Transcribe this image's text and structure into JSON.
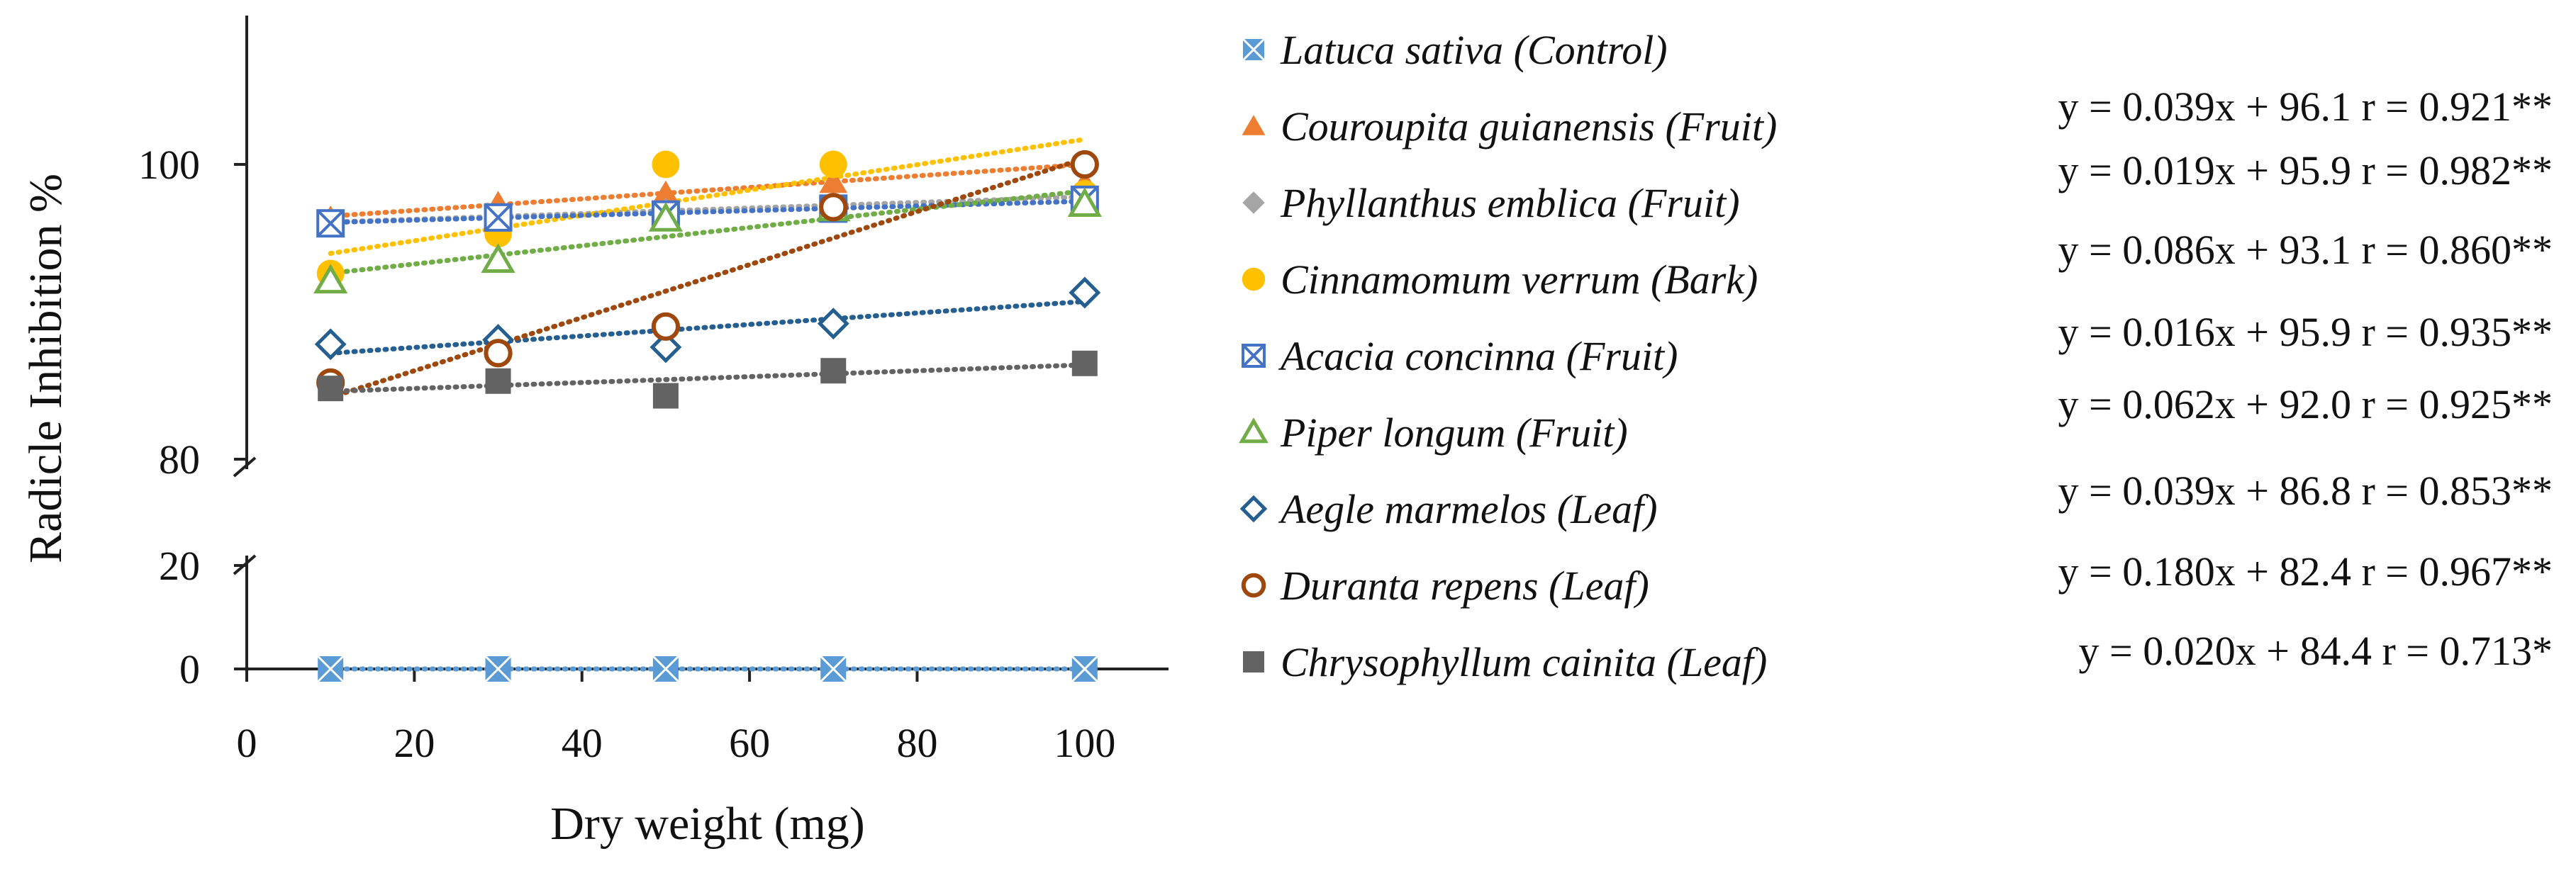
{
  "chart_data": {
    "type": "scatter",
    "title": "",
    "xlabel": "Dry weight (mg)",
    "ylabel": "Radicle Inhibition %",
    "xlim": [
      0,
      110
    ],
    "x_ticks": [
      0,
      20,
      40,
      60,
      80,
      100
    ],
    "x_tick_labels": [
      "0",
      "20",
      "40",
      "60",
      "80",
      "100"
    ],
    "y_axis_break": true,
    "y_lower_segment": {
      "range": [
        0,
        20
      ],
      "tick_labels": [
        "0",
        "20"
      ]
    },
    "y_upper_segment": {
      "range": [
        80,
        110
      ],
      "tick_labels": [
        "80",
        "100"
      ]
    },
    "grid": false,
    "legend_position": "right",
    "x": [
      10,
      30,
      50,
      70,
      100
    ],
    "series": [
      {
        "name": "Latuca sativa (Control)",
        "marker": "square-x",
        "color": "#5b9bd5",
        "values": [
          0,
          0,
          0,
          0,
          0
        ],
        "equation": "",
        "trend": {
          "slope": 0,
          "intercept": 0
        }
      },
      {
        "name": "Couroupita guianensis (Fruit)",
        "marker": "triangle",
        "color": "#ed7d31",
        "values": [
          96.3,
          97.3,
          98.0,
          98.8,
          98.7
        ],
        "equation": "y = 0.039x + 96.1 r = 0.921**",
        "trend": {
          "slope": 0.039,
          "intercept": 96.1
        }
      },
      {
        "name": "Phyllanthus emblica (Fruit)",
        "marker": "diamond",
        "color": "#a5a5a5",
        "values": [
          96.0,
          96.4,
          96.8,
          97.1,
          97.7
        ],
        "equation": "y = 0.019x + 95.9 r = 0.982**",
        "trend": {
          "slope": 0.019,
          "intercept": 95.9
        }
      },
      {
        "name": "Cinnamomum verrum (Bark)",
        "marker": "circle",
        "color": "#ffc000",
        "values": [
          92.6,
          95.3,
          100.0,
          100.0,
          98.0
        ],
        "equation": "y = 0.086x + 93.1 r = 0.860**",
        "trend": {
          "slope": 0.086,
          "intercept": 93.1
        }
      },
      {
        "name": "Acacia concinna (Fruit)",
        "marker": "square-x-open",
        "color": "#4472c4",
        "values": [
          96.0,
          96.4,
          96.6,
          97.0,
          97.6
        ],
        "equation": "y = 0.016x + 95.9 r = 0.935**",
        "trend": {
          "slope": 0.016,
          "intercept": 95.9
        }
      },
      {
        "name": "Piper longum (Fruit)",
        "marker": "triangle-open",
        "color": "#70ad47",
        "values": [
          92.1,
          93.5,
          96.3,
          97.0,
          97.3
        ],
        "equation": "y = 0.062x + 92.0 r = 0.925**",
        "trend": {
          "slope": 0.062,
          "intercept": 92.0
        }
      },
      {
        "name": "Aegle marmelos (Leaf)",
        "marker": "diamond-open",
        "color": "#255e91",
        "values": [
          87.8,
          88.1,
          87.6,
          89.2,
          91.3
        ],
        "equation": "y = 0.039x + 86.8 r = 0.853**",
        "trend": {
          "slope": 0.039,
          "intercept": 86.8
        }
      },
      {
        "name": "Duranta repens (Leaf)",
        "marker": "circle-open",
        "color": "#9e480e",
        "values": [
          85.2,
          87.2,
          89.0,
          97.1,
          100.0
        ],
        "equation": "y = 0.180x + 82.4 r = 0.967**",
        "trend": {
          "slope": 0.18,
          "intercept": 82.4
        }
      },
      {
        "name": "Chrysophyllum cainita (Leaf)",
        "marker": "square",
        "color": "#636363",
        "values": [
          84.8,
          85.3,
          84.3,
          86.0,
          86.5
        ],
        "equation": "y = 0.020x + 84.4 r = 0.713*",
        "trend": {
          "slope": 0.02,
          "intercept": 84.4
        }
      }
    ]
  }
}
